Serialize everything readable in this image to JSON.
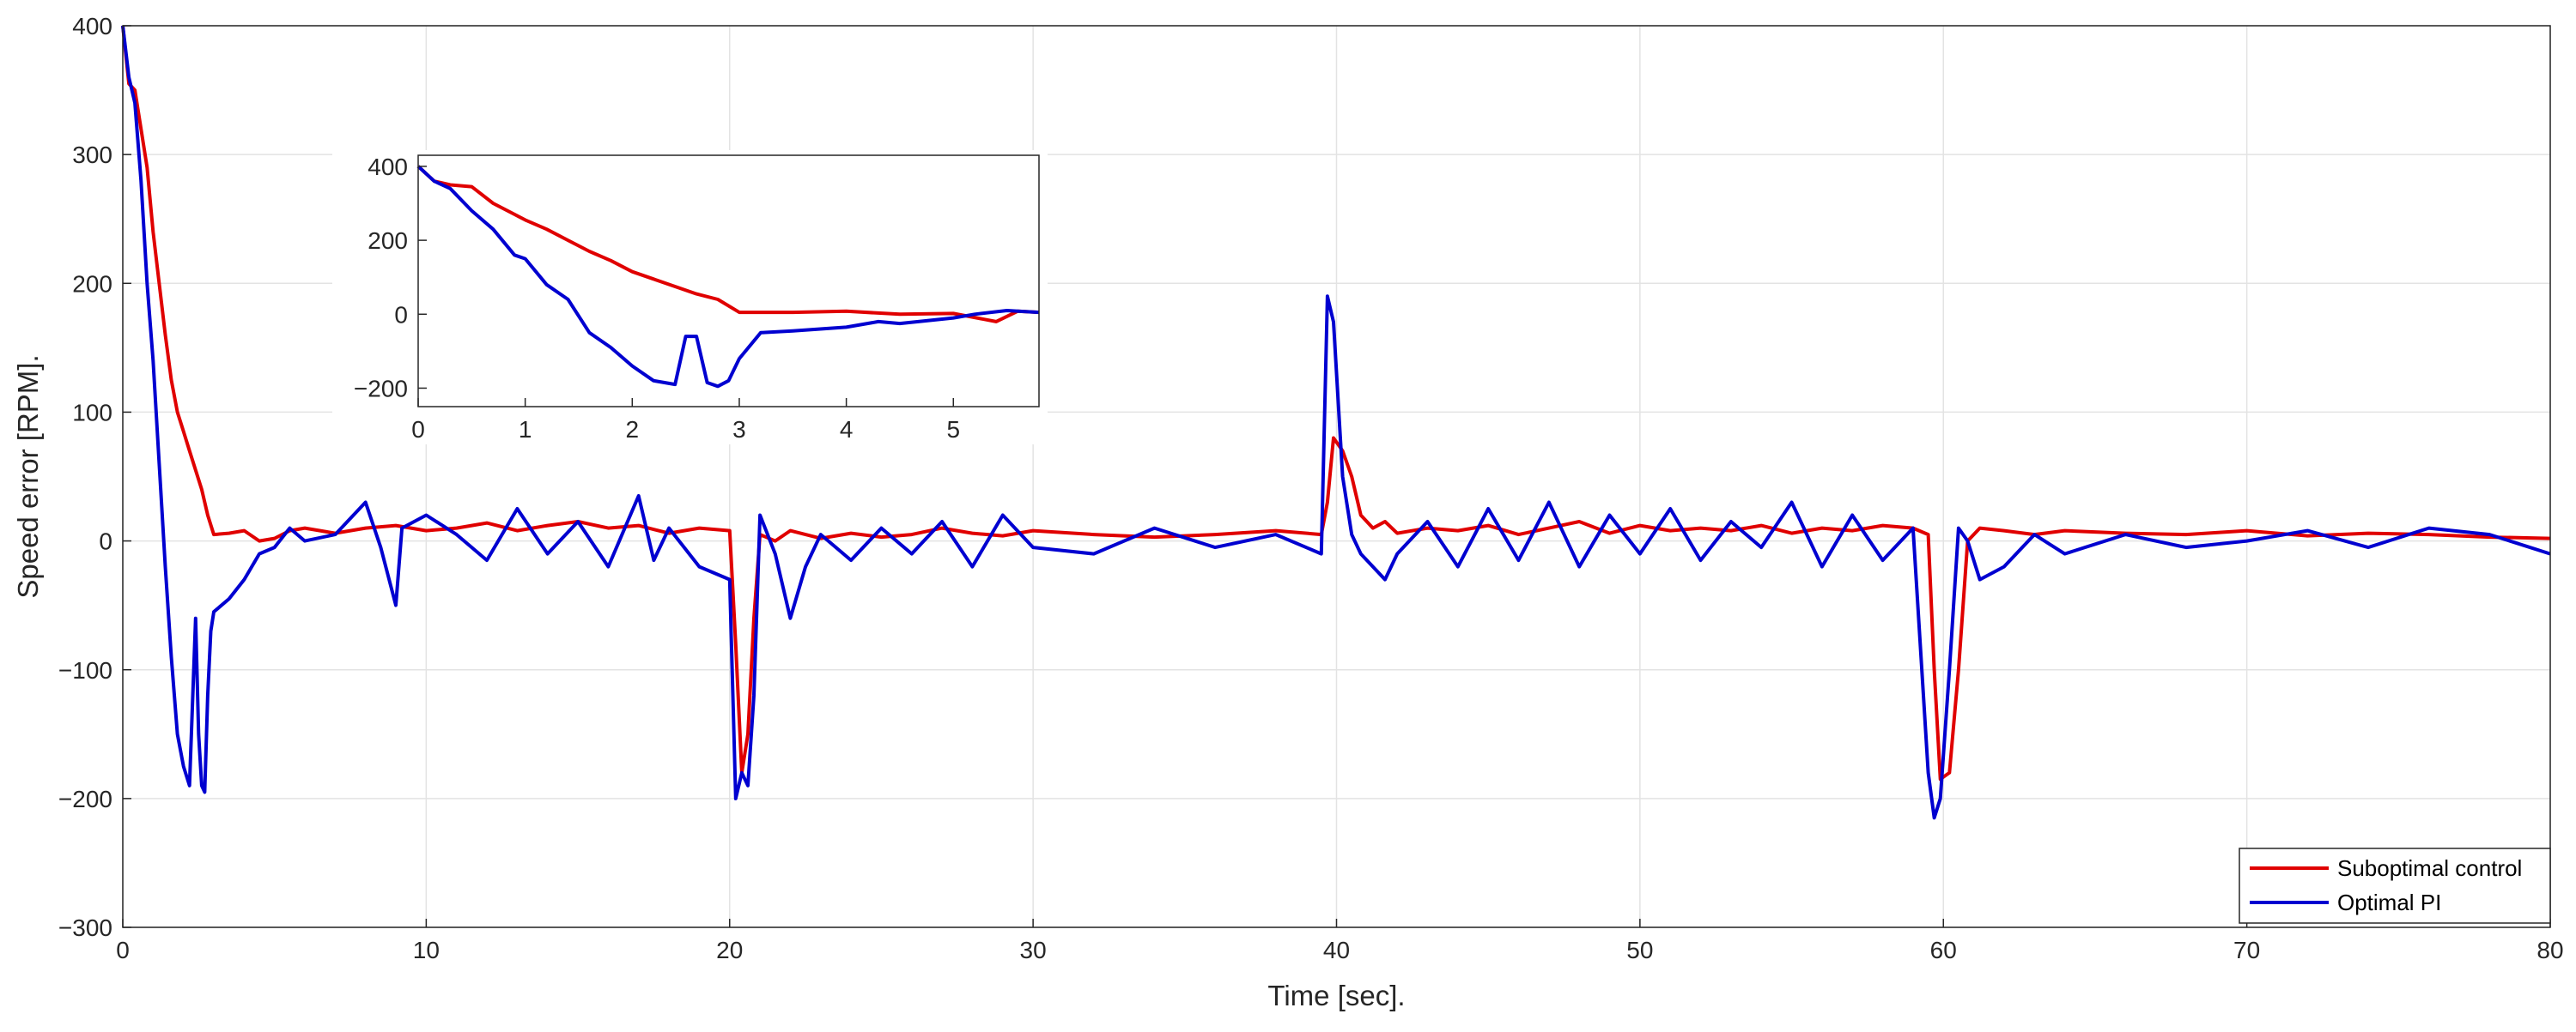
{
  "chart_data": [
    {
      "type": "line",
      "title": "",
      "xlabel": "Time [sec].",
      "ylabel": "Speed error [RPM].",
      "xlim": [
        0,
        80
      ],
      "ylim": [
        -300,
        400
      ],
      "xticks": [
        "0",
        "10",
        "20",
        "30",
        "40",
        "50",
        "60",
        "70",
        "80"
      ],
      "yticks": [
        "−300",
        "−200",
        "−100",
        "0",
        "100",
        "200",
        "300",
        "400"
      ],
      "grid": true,
      "legend_position": "bottom-right",
      "series": [
        {
          "name": "Suboptimal control",
          "color": "#e00000",
          "x": [
            0,
            0.2,
            0.4,
            0.6,
            0.8,
            1.0,
            1.2,
            1.4,
            1.6,
            1.8,
            2.0,
            2.2,
            2.4,
            2.6,
            2.8,
            3.0,
            3.5,
            4.0,
            4.5,
            5.0,
            5.5,
            6.0,
            7.0,
            8.0,
            9.0,
            10.0,
            11.0,
            12.0,
            13.0,
            14.0,
            15.0,
            16.0,
            17.0,
            18.0,
            19.0,
            20.0,
            20.2,
            20.4,
            20.6,
            20.8,
            21.0,
            21.5,
            22.0,
            23.0,
            24.0,
            25.0,
            26.0,
            27.0,
            28.0,
            29.0,
            30.0,
            32.0,
            34.0,
            36.0,
            38.0,
            39.5,
            39.7,
            39.9,
            40.2,
            40.5,
            40.8,
            41.2,
            41.6,
            42.0,
            43.0,
            44.0,
            45.0,
            46.0,
            47.0,
            48.0,
            49.0,
            50.0,
            51.0,
            52.0,
            53.0,
            54.0,
            55.0,
            56.0,
            57.0,
            58.0,
            59.0,
            59.5,
            59.7,
            59.9,
            60.2,
            60.5,
            60.8,
            61.2,
            62.0,
            63.0,
            64.0,
            66.0,
            68.0,
            70.0,
            72.0,
            74.0,
            76.0,
            78.0,
            80.0
          ],
          "values": [
            400,
            355,
            350,
            320,
            290,
            240,
            200,
            160,
            125,
            100,
            85,
            70,
            55,
            40,
            20,
            5,
            6,
            8,
            0,
            2,
            8,
            10,
            6,
            10,
            12,
            8,
            10,
            14,
            8,
            12,
            15,
            10,
            12,
            6,
            10,
            8,
            -80,
            -180,
            -150,
            -60,
            5,
            0,
            8,
            2,
            6,
            3,
            5,
            10,
            6,
            4,
            8,
            5,
            3,
            5,
            8,
            5,
            30,
            80,
            70,
            50,
            20,
            10,
            15,
            6,
            10,
            8,
            12,
            5,
            10,
            15,
            6,
            12,
            8,
            10,
            8,
            12,
            6,
            10,
            8,
            12,
            10,
            5,
            -100,
            -185,
            -180,
            -100,
            0,
            10,
            8,
            5,
            8,
            6,
            5,
            8,
            4,
            6,
            5,
            3,
            2
          ]
        },
        {
          "name": "Optimal PI",
          "color": "#0000d0",
          "x": [
            0,
            0.2,
            0.4,
            0.6,
            0.8,
            1.0,
            1.2,
            1.4,
            1.6,
            1.8,
            2.0,
            2.2,
            2.4,
            2.5,
            2.6,
            2.7,
            2.8,
            2.9,
            3.0,
            3.5,
            4.0,
            4.5,
            5.0,
            5.5,
            6.0,
            7.0,
            8.0,
            8.5,
            9.0,
            9.2,
            10.0,
            11.0,
            12.0,
            13.0,
            14.0,
            15.0,
            16.0,
            17.0,
            17.5,
            18.0,
            19.0,
            20.0,
            20.2,
            20.4,
            20.6,
            20.8,
            21.0,
            21.5,
            22.0,
            22.5,
            23.0,
            24.0,
            25.0,
            26.0,
            27.0,
            28.0,
            29.0,
            30.0,
            32.0,
            34.0,
            36.0,
            38.0,
            39.5,
            39.7,
            39.9,
            40.2,
            40.5,
            40.8,
            41.2,
            41.6,
            42.0,
            43.0,
            44.0,
            45.0,
            46.0,
            47.0,
            48.0,
            49.0,
            50.0,
            51.0,
            52.0,
            53.0,
            54.0,
            55.0,
            56.0,
            57.0,
            58.0,
            59.0,
            59.5,
            59.7,
            59.9,
            60.2,
            60.5,
            60.8,
            61.2,
            62.0,
            63.0,
            64.0,
            66.0,
            68.0,
            70.0,
            72.0,
            74.0,
            76.0,
            78.0,
            80.0
          ],
          "values": [
            400,
            360,
            340,
            280,
            200,
            140,
            60,
            -20,
            -90,
            -150,
            -175,
            -190,
            -60,
            -150,
            -190,
            -195,
            -120,
            -70,
            -55,
            -45,
            -30,
            -10,
            -5,
            10,
            0,
            5,
            30,
            -5,
            -50,
            10,
            20,
            5,
            -15,
            25,
            -10,
            15,
            -20,
            35,
            -15,
            10,
            -20,
            -30,
            -200,
            -180,
            -190,
            -120,
            20,
            -10,
            -60,
            -20,
            5,
            -15,
            10,
            -10,
            15,
            -20,
            20,
            -5,
            -10,
            10,
            -5,
            5,
            -10,
            190,
            170,
            50,
            5,
            -10,
            -20,
            -30,
            -10,
            15,
            -20,
            25,
            -15,
            30,
            -20,
            20,
            -10,
            25,
            -15,
            15,
            -5,
            30,
            -20,
            20,
            -15,
            10,
            -180,
            -215,
            -200,
            -100,
            10,
            0,
            -30,
            -20,
            5,
            -10,
            5,
            -5,
            0,
            8,
            -5,
            10,
            5,
            -10
          ]
        }
      ]
    },
    {
      "type": "line",
      "title": "",
      "xlabel": "",
      "ylabel": "",
      "xlim": [
        0,
        5.8
      ],
      "ylim": [
        -250,
        430
      ],
      "xticks": [
        "0",
        "1",
        "2",
        "3",
        "4",
        "5"
      ],
      "yticks": [
        "−200",
        "0",
        "200",
        "400"
      ],
      "grid": false,
      "series": [
        {
          "color": "#e00000",
          "x": [
            0,
            0.15,
            0.3,
            0.5,
            0.7,
            0.9,
            1.0,
            1.2,
            1.4,
            1.6,
            1.8,
            2.0,
            2.2,
            2.4,
            2.6,
            2.8,
            3.0,
            3.5,
            4.0,
            4.5,
            5.0,
            5.4,
            5.6,
            5.8
          ],
          "values": [
            400,
            360,
            350,
            345,
            300,
            270,
            255,
            230,
            200,
            170,
            145,
            115,
            95,
            75,
            55,
            40,
            5,
            5,
            8,
            0,
            2,
            -20,
            8,
            5
          ]
        },
        {
          "color": "#0000d0",
          "x": [
            0,
            0.15,
            0.3,
            0.5,
            0.7,
            0.9,
            1.0,
            1.2,
            1.4,
            1.6,
            1.8,
            2.0,
            2.2,
            2.4,
            2.5,
            2.6,
            2.7,
            2.8,
            2.9,
            3.0,
            3.2,
            3.5,
            4.0,
            4.3,
            4.5,
            5.0,
            5.2,
            5.5,
            5.8
          ],
          "values": [
            400,
            360,
            340,
            280,
            230,
            160,
            150,
            80,
            40,
            -50,
            -90,
            -140,
            -180,
            -190,
            -60,
            -60,
            -185,
            -195,
            -180,
            -120,
            -50,
            -45,
            -35,
            -20,
            -25,
            -10,
            0,
            10,
            5
          ]
        }
      ]
    }
  ]
}
